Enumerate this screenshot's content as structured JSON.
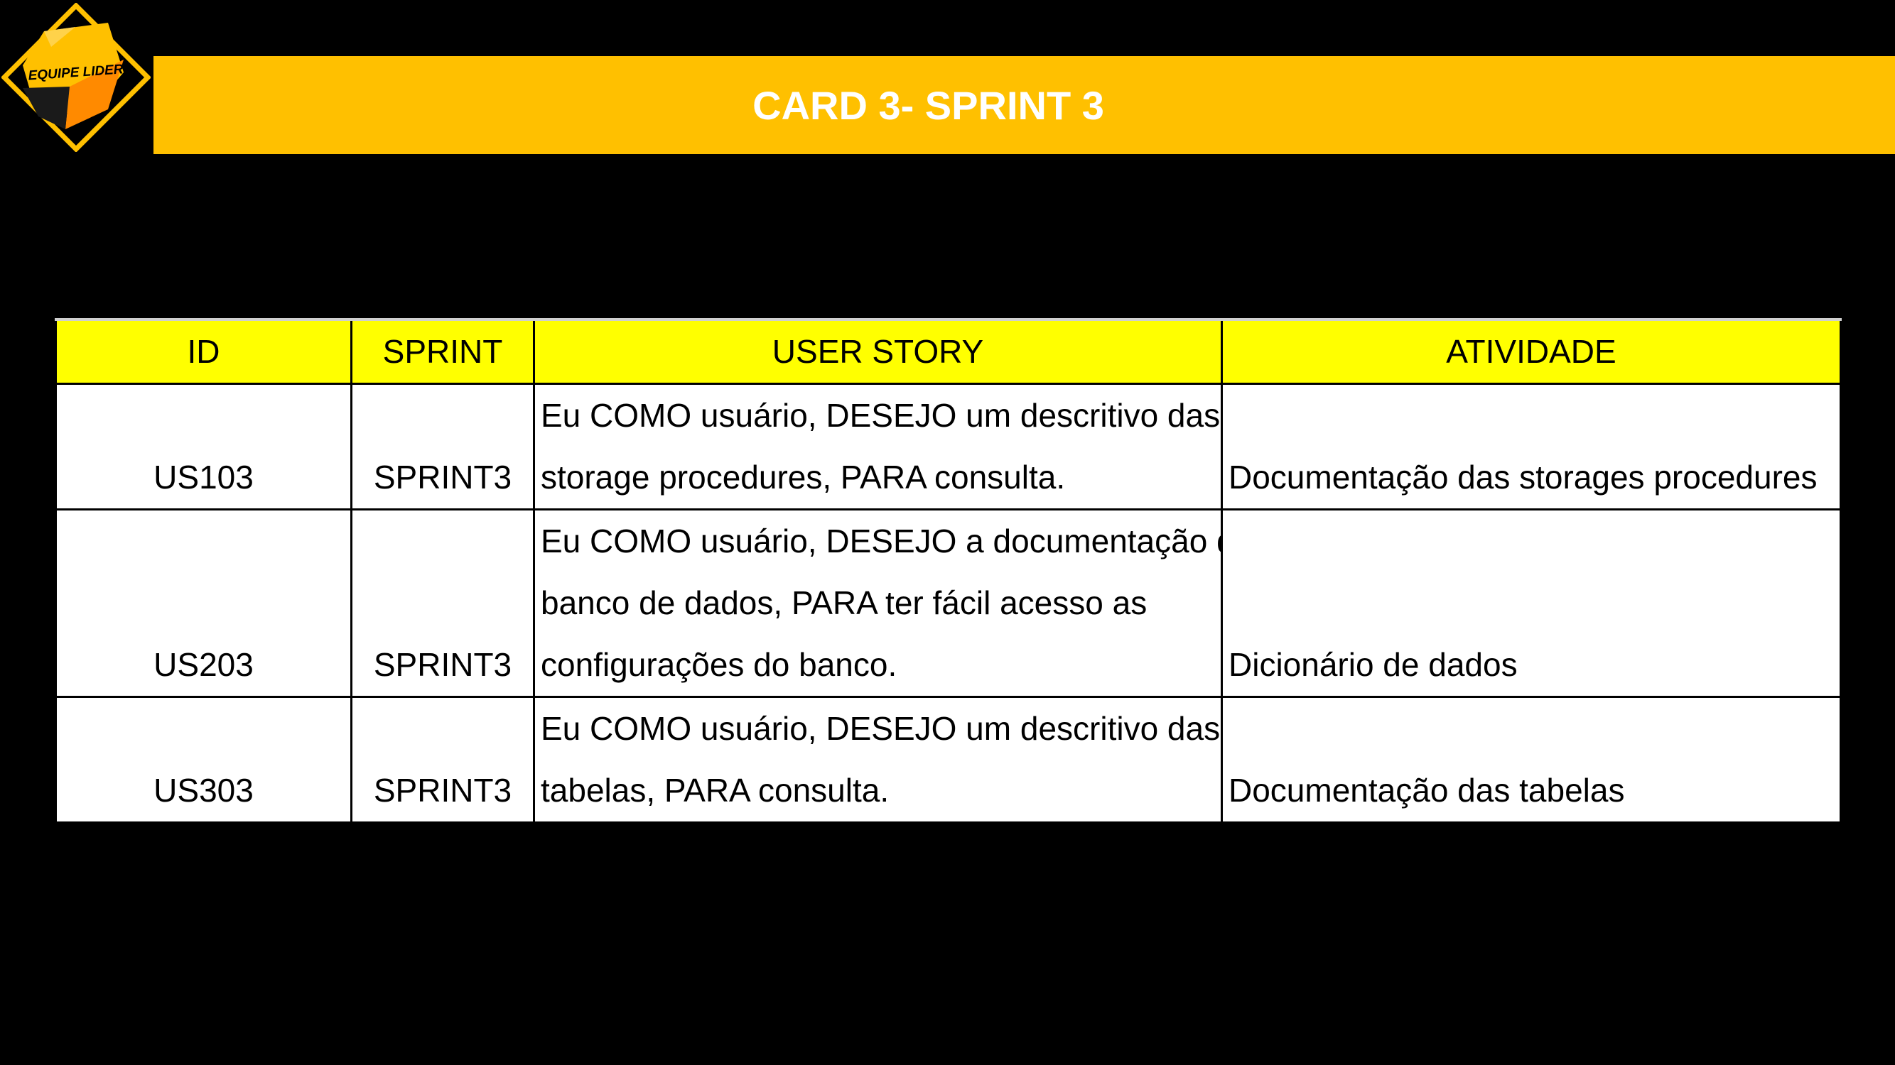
{
  "logo": {
    "text": "EQUIPE LIDER",
    "colors": {
      "frame": "#FFC000",
      "inner_light": "#FFD24A",
      "inner_orange": "#FF8A00",
      "inner_dark": "#1a1a1a"
    }
  },
  "title": "CARD 3- SPRINT 3",
  "colors": {
    "background": "#000000",
    "title_bar": "#FFC000",
    "title_text": "#FFFFFF",
    "table_header": "#FFFF00",
    "table_body": "#FFFFFF",
    "table_border": "#000000"
  },
  "table": {
    "headers": [
      "ID",
      "SPRINT",
      "USER STORY",
      "ATIVIDADE"
    ],
    "rows": [
      {
        "id": "US103",
        "sprint": "SPRINT3",
        "story_lines": [
          "Eu COMO usuário, DESEJO um descritivo das",
          "storage procedures, PARA consulta."
        ],
        "atividade": "Documentação das storages procedures"
      },
      {
        "id": "US203",
        "sprint": "SPRINT3",
        "story_lines": [
          "Eu COMO usuário, DESEJO a documentação do",
          "banco de dados, PARA ter fácil acesso as",
          "configurações do banco."
        ],
        "atividade": "Dicionário de dados"
      },
      {
        "id": "US303",
        "sprint": "SPRINT3",
        "story_lines": [
          "Eu COMO usuário, DESEJO um descritivo das",
          "tabelas, PARA consulta."
        ],
        "atividade": "Documentação das tabelas"
      }
    ]
  }
}
